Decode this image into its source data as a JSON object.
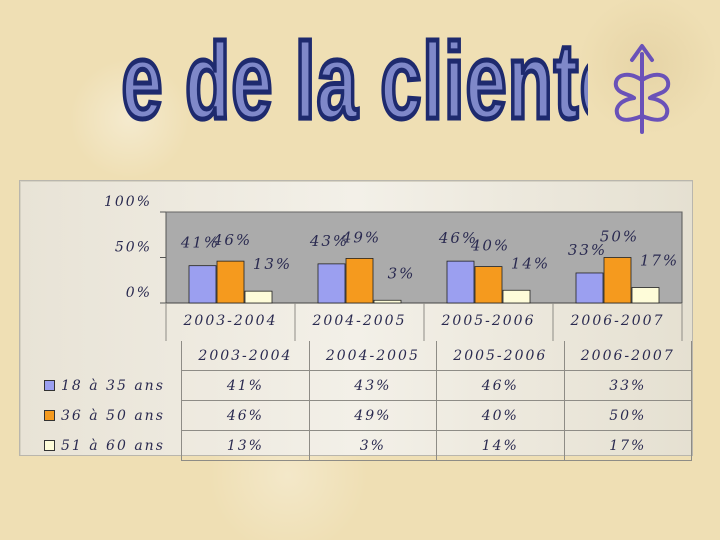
{
  "title": "Âge de la clientèle",
  "colors": {
    "title_fill": "#7f88c9",
    "title_outline": "#1e2a6e",
    "logo": "#6a52b8",
    "series_1": "#9b9ff0",
    "series_2": "#f59a1e",
    "series_3": "#fefcd9"
  },
  "logo_icon": "stylized-tree-icon",
  "chart_data": {
    "type": "bar",
    "categories": [
      "2003-2004",
      "2004-2005",
      "2005-2006",
      "2006-2007"
    ],
    "series": [
      {
        "name": "18 à 35 ans",
        "values": [
          41,
          43,
          46,
          33
        ],
        "labels": [
          "41%",
          "43%",
          "46%",
          "33%"
        ]
      },
      {
        "name": "36 à 50 ans",
        "values": [
          46,
          49,
          40,
          50
        ],
        "labels": [
          "46%",
          "49%",
          "40%",
          "50%"
        ]
      },
      {
        "name": "51 à 60 ans",
        "values": [
          13,
          3,
          14,
          17
        ],
        "labels": [
          "13%",
          "3%",
          "14%",
          "17%"
        ]
      }
    ],
    "y_ticks": [
      "0%",
      "50%",
      "100%"
    ],
    "ylim": [
      0,
      100
    ],
    "grid": false,
    "legend": "data table below the chart"
  }
}
